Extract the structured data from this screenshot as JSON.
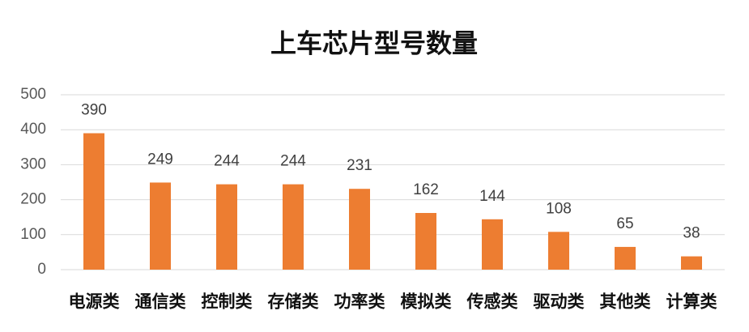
{
  "chart_data": {
    "type": "bar",
    "title": "上车芯片型号数量",
    "categories": [
      "电源类",
      "通信类",
      "控制类",
      "存储类",
      "功率类",
      "模拟类",
      "传感类",
      "驱动类",
      "其他类",
      "计算类"
    ],
    "values": [
      390,
      249,
      244,
      244,
      231,
      162,
      144,
      108,
      65,
      38
    ],
    "color": "#ed7d31",
    "ylim": [
      0,
      500
    ],
    "yticks": [
      0,
      100,
      200,
      300,
      400,
      500
    ],
    "grid": true
  }
}
